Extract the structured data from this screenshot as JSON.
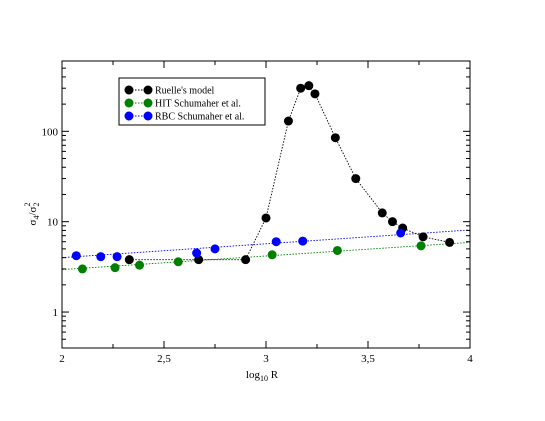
{
  "chart_data": {
    "type": "scatter",
    "title": "",
    "xlabel": {
      "main": "log",
      "sub": "10",
      "tail": " R"
    },
    "ylabel": {
      "a": "σ",
      "a_sub": "4",
      "slash": "/",
      "b": "σ",
      "b_sub": "2",
      "b_sup": "2"
    },
    "xlim": [
      2,
      4
    ],
    "ylim": [
      0.4,
      600
    ],
    "yscale": "log",
    "xticks": [
      {
        "value": 2,
        "label": "2"
      },
      {
        "value": 2.5,
        "label": "2,5"
      },
      {
        "value": 3,
        "label": "3"
      },
      {
        "value": 3.5,
        "label": "3,5"
      },
      {
        "value": 4,
        "label": "4"
      }
    ],
    "yticks": [
      {
        "value": 1,
        "label": "1"
      },
      {
        "value": 10,
        "label": "10"
      },
      {
        "value": 100,
        "label": "100"
      }
    ],
    "grid": false,
    "legend_position": "top-left",
    "series": [
      {
        "name": "Ruelle's model",
        "color": "#000000",
        "marker": "circle",
        "line": "dotted",
        "x": [
          2.33,
          2.67,
          2.9,
          3.0,
          3.11,
          3.17,
          3.21,
          3.24,
          3.34,
          3.44,
          3.57,
          3.62,
          3.67,
          3.77,
          3.9
        ],
        "y": [
          3.8,
          3.8,
          3.8,
          11,
          130,
          300,
          320,
          260,
          85,
          30,
          12.5,
          10,
          8.5,
          6.8,
          5.9
        ]
      },
      {
        "name": "HIT Schumaher et al.",
        "color": "#008000",
        "marker": "circle",
        "line": "dotted",
        "x": [
          2.1,
          2.26,
          2.38,
          2.57,
          3.03,
          3.35,
          3.76
        ],
        "y": [
          3.0,
          3.1,
          3.3,
          3.6,
          4.3,
          4.8,
          5.4
        ]
      },
      {
        "name": "RBC Schumaher et al.",
        "color": "#0000ff",
        "marker": "circle",
        "line": "dotted",
        "x": [
          2.07,
          2.19,
          2.27,
          2.66,
          2.75,
          3.05,
          3.18,
          3.66
        ],
        "y": [
          4.2,
          4.1,
          4.1,
          4.5,
          5.0,
          6.0,
          6.1,
          7.5
        ]
      }
    ],
    "trend_lines": [
      {
        "series": "HIT Schumaher et al.",
        "x": [
          2,
          4
        ],
        "y": [
          2.95,
          5.9
        ]
      },
      {
        "series": "RBC Schumaher et al.",
        "x": [
          2,
          4
        ],
        "y": [
          4.0,
          8.1
        ]
      }
    ]
  }
}
